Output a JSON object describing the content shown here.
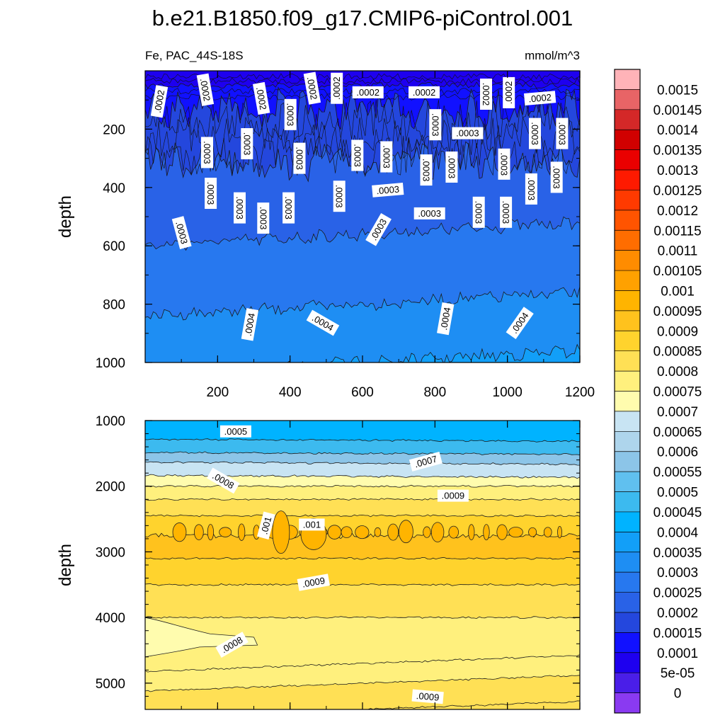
{
  "chart_data": [
    {
      "type": "heatmap",
      "title": "b.e21.B1850.f09_g17.CMIP6-piControl.001",
      "subtitle_left": "Fe, PAC_44S-18S",
      "subtitle_right": "mmol/m^3",
      "ylabel": "depth",
      "x_ticks": [
        "200",
        "400",
        "600",
        "800",
        "1000",
        "1200"
      ],
      "y_ticks": [
        "200",
        "400",
        "600",
        "800",
        "1000"
      ],
      "xlim": [
        0,
        1200
      ],
      "ylim": [
        0,
        1000
      ],
      "y_reversed": true,
      "levels": [
        {
          "depth": 0,
          "value": 0.0001
        },
        {
          "depth": 50,
          "value": 0.00015
        },
        {
          "depth": 130,
          "value": 0.0002
        },
        {
          "depth": 310,
          "value": 0.00025
        },
        {
          "depth": 560,
          "value": 0.0003
        },
        {
          "depth": 800,
          "value": 0.00035
        },
        {
          "depth": 1000,
          "value": 0.0004
        }
      ],
      "contour_labels": [
        {
          "text": ".0002",
          "x": 40,
          "y": 105,
          "angle": -80
        },
        {
          "text": ".0002",
          "x": 165,
          "y": 65,
          "angle": 80
        },
        {
          "text": ".0002",
          "x": 320,
          "y": 95,
          "angle": 80
        },
        {
          "text": ".0002",
          "x": 460,
          "y": 60,
          "angle": 80
        },
        {
          "text": ".0002",
          "x": 530,
          "y": 60,
          "angle": -90
        },
        {
          "text": ".0002",
          "x": 615,
          "y": 75,
          "angle": 0
        },
        {
          "text": ".0002",
          "x": 770,
          "y": 75,
          "angle": 0
        },
        {
          "text": ".0002",
          "x": 940,
          "y": 80,
          "angle": 90
        },
        {
          "text": ".0002",
          "x": 1005,
          "y": 75,
          "angle": -90
        },
        {
          "text": ".0002",
          "x": 1090,
          "y": 95,
          "angle": -5
        },
        {
          "text": ".0003",
          "x": 400,
          "y": 150,
          "angle": 90
        },
        {
          "text": ".0003",
          "x": 800,
          "y": 185,
          "angle": 90
        },
        {
          "text": ".0003",
          "x": 890,
          "y": 215,
          "angle": 0
        },
        {
          "text": ".0003",
          "x": 1075,
          "y": 215,
          "angle": 90
        },
        {
          "text": ".0003",
          "x": 1150,
          "y": 215,
          "angle": 90
        },
        {
          "text": ".0003",
          "x": 170,
          "y": 280,
          "angle": 90
        },
        {
          "text": ".0003",
          "x": 280,
          "y": 250,
          "angle": 90
        },
        {
          "text": ".0003",
          "x": 425,
          "y": 300,
          "angle": 90
        },
        {
          "text": ".0003",
          "x": 585,
          "y": 290,
          "angle": 90
        },
        {
          "text": ".0003",
          "x": 665,
          "y": 295,
          "angle": 90
        },
        {
          "text": ".0003",
          "x": 775,
          "y": 340,
          "angle": 90
        },
        {
          "text": ".0003",
          "x": 845,
          "y": 330,
          "angle": 90
        },
        {
          "text": ".0003",
          "x": 990,
          "y": 320,
          "angle": 90
        },
        {
          "text": ".0003",
          "x": 1135,
          "y": 365,
          "angle": 90
        },
        {
          "text": ".0003",
          "x": 180,
          "y": 420,
          "angle": 90
        },
        {
          "text": ".0003",
          "x": 1065,
          "y": 405,
          "angle": 90
        },
        {
          "text": ".0003",
          "x": 670,
          "y": 410,
          "angle": -5
        },
        {
          "text": ".0003",
          "x": 260,
          "y": 470,
          "angle": 90
        },
        {
          "text": ".0003",
          "x": 325,
          "y": 505,
          "angle": 90
        },
        {
          "text": ".0003",
          "x": 395,
          "y": 470,
          "angle": 90
        },
        {
          "text": ".0003",
          "x": 535,
          "y": 430,
          "angle": 90
        },
        {
          "text": ".0003",
          "x": 785,
          "y": 490,
          "angle": 0
        },
        {
          "text": ".0003",
          "x": 920,
          "y": 485,
          "angle": 90
        },
        {
          "text": ".0003",
          "x": 995,
          "y": 485,
          "angle": 90
        },
        {
          "text": ".0003",
          "x": 100,
          "y": 555,
          "angle": 75
        },
        {
          "text": ".0003",
          "x": 645,
          "y": 545,
          "angle": -60
        },
        {
          "text": ".0004",
          "x": 290,
          "y": 870,
          "angle": -80
        },
        {
          "text": ".0004",
          "x": 490,
          "y": 865,
          "angle": 30
        },
        {
          "text": ".0004",
          "x": 830,
          "y": 850,
          "angle": -80
        },
        {
          "text": ".0004",
          "x": 1035,
          "y": 865,
          "angle": -55
        }
      ]
    },
    {
      "type": "heatmap",
      "ylabel": "depth",
      "y_ticks": [
        "1000",
        "2000",
        "3000",
        "4000",
        "5000"
      ],
      "xlim": [
        0,
        1200
      ],
      "ylim": [
        1000,
        5400
      ],
      "y_reversed": true,
      "levels": [
        {
          "depth": 1000,
          "value": 0.00045
        },
        {
          "depth": 1300,
          "value": 0.0005
        },
        {
          "depth": 1500,
          "value": 0.0006
        },
        {
          "depth": 1650,
          "value": 0.0007
        },
        {
          "depth": 1850,
          "value": 0.00075
        },
        {
          "depth": 2000,
          "value": 0.0008
        },
        {
          "depth": 2200,
          "value": 0.00085
        },
        {
          "depth": 2450,
          "value": 0.0009
        },
        {
          "depth": 2750,
          "value": 0.00095
        },
        {
          "depth": 3100,
          "value": 0.0009
        },
        {
          "depth": 3500,
          "value": 0.00085
        },
        {
          "depth": 4000,
          "value": 0.0008
        },
        {
          "depth": 4700,
          "value": 0.0008
        },
        {
          "depth": 5000,
          "value": 0.00085
        },
        {
          "depth": 5400,
          "value": 0.00085
        }
      ],
      "contour_labels": [
        {
          "text": ".0005",
          "x": 250,
          "y": 1170,
          "angle": 0
        },
        {
          "text": ".0007",
          "x": 775,
          "y": 1630,
          "angle": -15
        },
        {
          "text": ".0008",
          "x": 215,
          "y": 1920,
          "angle": 30
        },
        {
          "text": ".0009",
          "x": 850,
          "y": 2150,
          "angle": 0
        },
        {
          "text": ".001",
          "x": 335,
          "y": 2600,
          "angle": -75
        },
        {
          "text": ".001",
          "x": 460,
          "y": 2590,
          "angle": 0
        },
        {
          "text": ".0009",
          "x": 465,
          "y": 3470,
          "angle": -10
        },
        {
          "text": ".0008",
          "x": 240,
          "y": 4420,
          "angle": -30
        },
        {
          "text": ".0009",
          "x": 780,
          "y": 5210,
          "angle": 5
        }
      ]
    },
    {
      "type": "colorbar",
      "labels": [
        "0.0015",
        "0.00145",
        "0.0014",
        "0.00135",
        "0.0013",
        "0.00125",
        "0.0012",
        "0.00115",
        "0.0011",
        "0.00105",
        "0.001",
        "0.00095",
        "0.0009",
        "0.00085",
        "0.0008",
        "0.00075",
        "0.0007",
        "0.00065",
        "0.0006",
        "0.00055",
        "0.0005",
        "0.00045",
        "0.0004",
        "0.00035",
        "0.0003",
        "0.00025",
        "0.0002",
        "0.00015",
        "0.0001",
        "5e-05",
        "0"
      ],
      "colors": [
        "#ffb3b8",
        "#e86466",
        "#d42828",
        "#d10000",
        "#ea0000",
        "#fe1a00",
        "#ff3a00",
        "#ff5400",
        "#ff6d00",
        "#ff8c00",
        "#ffa100",
        "#ffb400",
        "#ffc21d",
        "#ffd32d",
        "#ffe055",
        "#fff07d",
        "#fffcae",
        "#c8e4f3",
        "#aed5ec",
        "#8cc5e8",
        "#60c0ef",
        "#3cbaef",
        "#00b3ff",
        "#129ff8",
        "#1e8ef3",
        "#2778ef",
        "#2962e7",
        "#2447dd",
        "#1111ff",
        "#1e00ef",
        "#4a1ee8",
        "#8a3af1"
      ]
    }
  ]
}
